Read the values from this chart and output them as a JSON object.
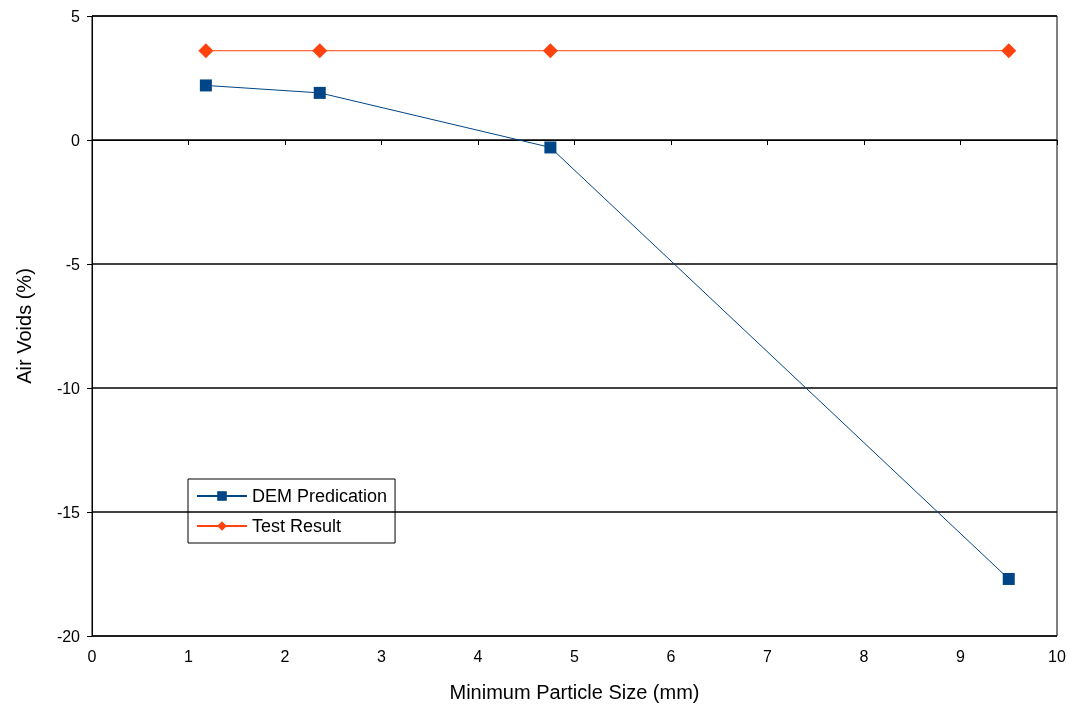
{
  "chart_data": {
    "type": "line",
    "xlabel": "Minimum Particle Size (mm)",
    "ylabel": "Air Voids (%)",
    "xlim": [
      0,
      10
    ],
    "xticks": [
      0,
      1,
      2,
      3,
      4,
      5,
      6,
      7,
      8,
      9,
      10
    ],
    "ylim": [
      -20,
      5
    ],
    "yticks": [
      -20,
      -15,
      -10,
      -5,
      0,
      5
    ],
    "grid": "y",
    "legend": "bottom left",
    "series": [
      {
        "name": "DEM Predication",
        "color": "#004586",
        "marker": "square",
        "x": [
          1.18,
          2.36,
          4.75,
          9.5
        ],
        "values": [
          2.2,
          1.9,
          -0.3,
          -17.7
        ]
      },
      {
        "name": "Test Result",
        "color": "#ff420e",
        "marker": "diamond",
        "x": [
          1.18,
          2.36,
          4.75,
          9.5
        ],
        "values": [
          3.6,
          3.6,
          3.6,
          3.6
        ]
      }
    ]
  }
}
